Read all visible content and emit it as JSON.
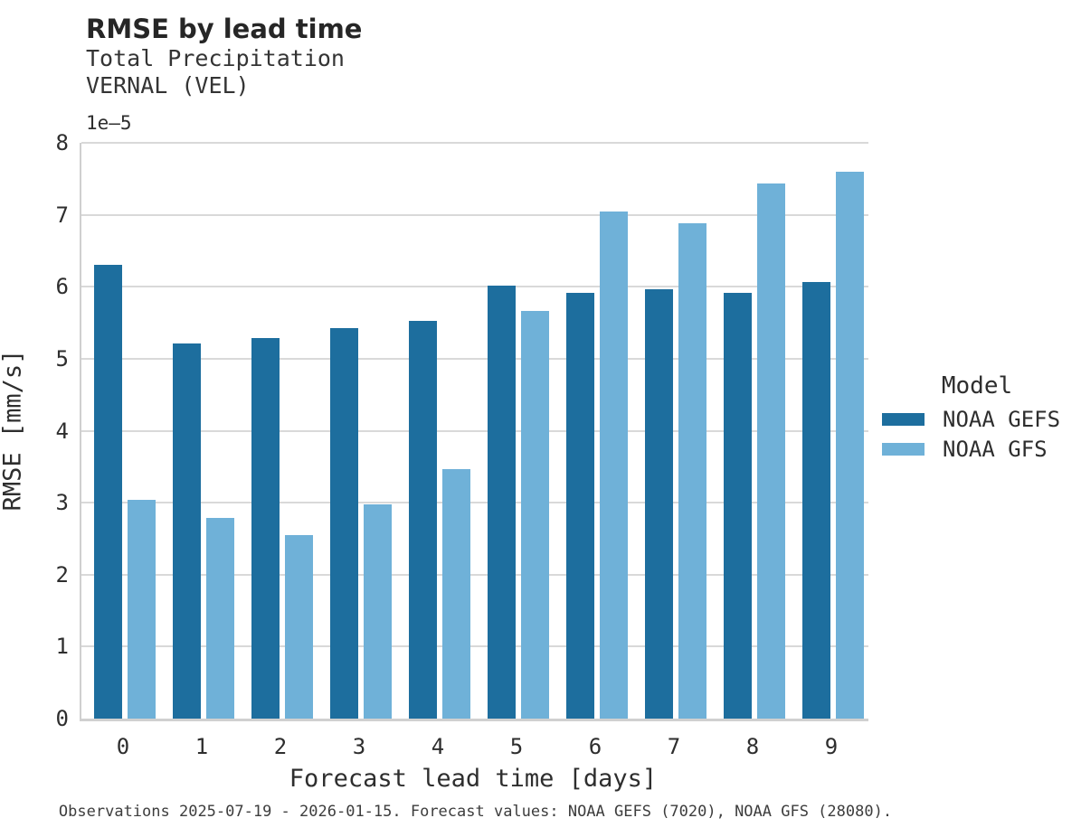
{
  "header": {
    "title": "RMSE by lead time",
    "subtitle_variable": "Total Precipitation",
    "subtitle_station": "VERNAL (VEL)"
  },
  "chart_data": {
    "type": "bar",
    "title": "RMSE by lead time",
    "subtitle": [
      "Total Precipitation",
      "VERNAL (VEL)"
    ],
    "categories": [
      "0",
      "1",
      "2",
      "3",
      "4",
      "5",
      "6",
      "7",
      "8",
      "9"
    ],
    "series": [
      {
        "name": "NOAA GEFS",
        "color": "#1d6e9e",
        "values": [
          6.3,
          5.21,
          5.29,
          5.43,
          5.52,
          6.02,
          5.91,
          5.96,
          5.91,
          6.06
        ]
      },
      {
        "name": "NOAA GFS",
        "color": "#6fb1d8",
        "values": [
          3.04,
          2.79,
          2.55,
          2.98,
          3.47,
          5.67,
          7.04,
          6.88,
          7.44,
          7.6
        ]
      }
    ],
    "value_scale": "1e-5",
    "y_offset_label": "1e–5",
    "xlabel": "Forecast lead time [days]",
    "ylabel": "RMSE [mm/s]",
    "ylim": [
      0,
      8
    ],
    "yticks": [
      0,
      1,
      2,
      3,
      4,
      5,
      6,
      7,
      8
    ],
    "grid": true,
    "legend": {
      "title": "Model",
      "position": "right"
    }
  },
  "footer": {
    "note": "Observations 2025-07-19 - 2026-01-15. Forecast values: NOAA GEFS (7020), NOAA GFS (28080)."
  }
}
